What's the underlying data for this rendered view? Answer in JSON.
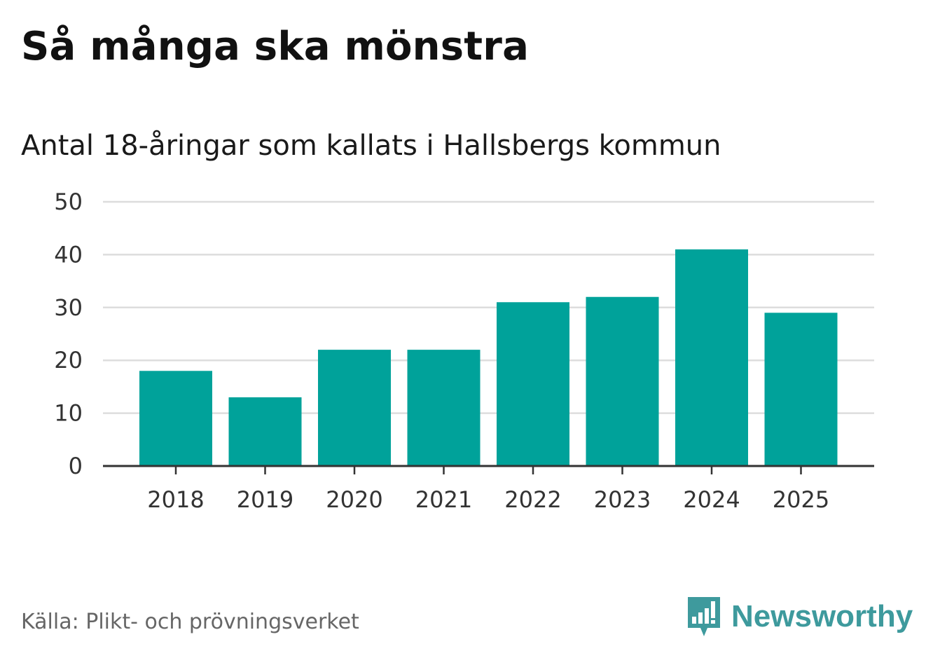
{
  "header": {
    "title": "Så många ska mönstra",
    "subtitle": "Antal 18-åringar som kallats i Hallsbergs kommun"
  },
  "footer": {
    "source": "Källa: Plikt- och prövningsverket",
    "brand_name": "Newsworthy",
    "brand_icon": "newsworthy-logo-icon"
  },
  "colors": {
    "bar": "#00a29a",
    "gridline": "#dddddd",
    "axis": "#333333",
    "brand": "#3e9a9d"
  },
  "chart_data": {
    "type": "bar",
    "title": "Så många ska mönstra",
    "subtitle": "Antal 18-åringar som kallats i Hallsbergs kommun",
    "xlabel": "",
    "ylabel": "",
    "categories": [
      "2018",
      "2019",
      "2020",
      "2021",
      "2022",
      "2023",
      "2024",
      "2025"
    ],
    "values": [
      18,
      13,
      22,
      22,
      31,
      32,
      41,
      29
    ],
    "ylim": [
      0,
      50
    ],
    "yticks": [
      0,
      10,
      20,
      30,
      40,
      50
    ],
    "grid": true,
    "legend": "none"
  }
}
